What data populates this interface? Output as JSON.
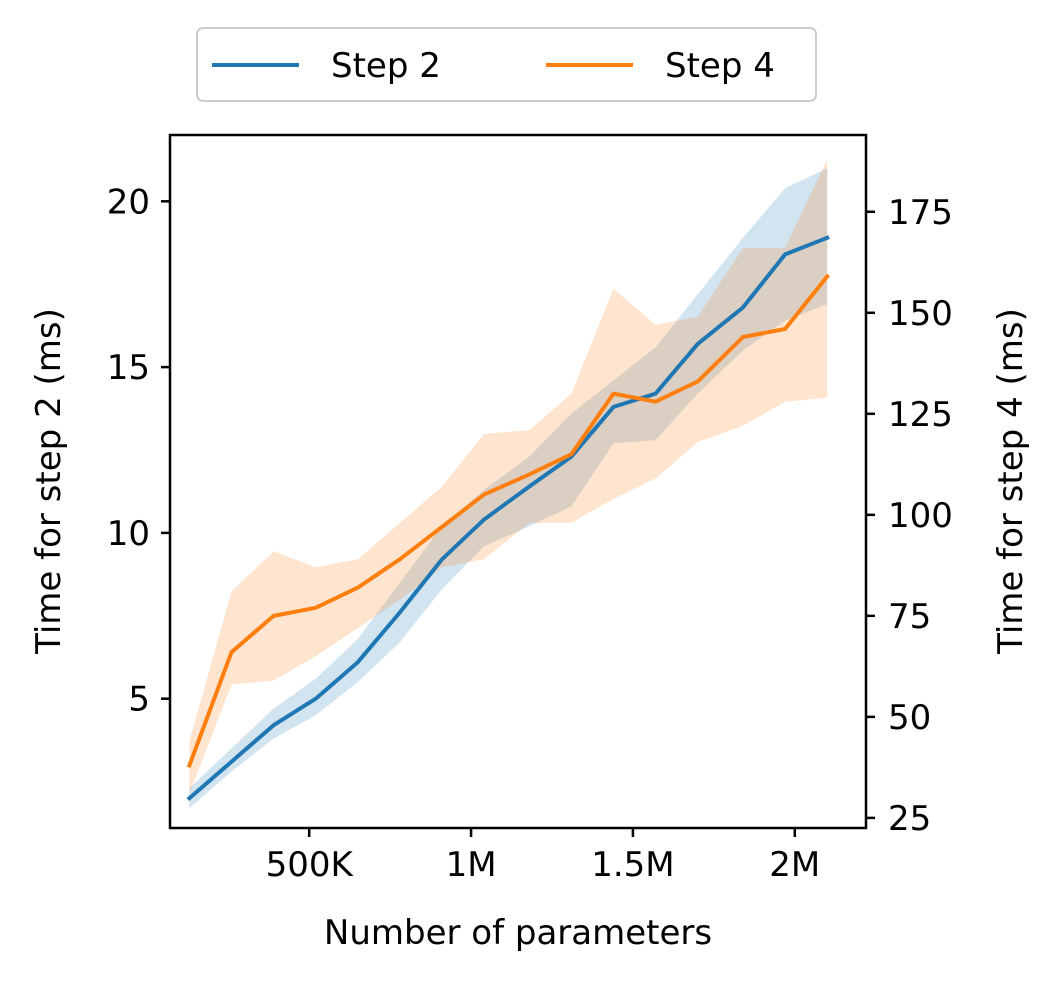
{
  "chart_data": {
    "type": "line",
    "xlabel": "Number of parameters",
    "ylabel_left": "Time for step 2 (ms)",
    "ylabel_right": "Time for step 4 (ms)",
    "xlim": [
      70000,
      2220000
    ],
    "ylim_left": [
      1.1,
      22
    ],
    "ylim_right": [
      22.5,
      194
    ],
    "x_ticks": [
      {
        "value": 500000,
        "label": "500K"
      },
      {
        "value": 1000000,
        "label": "1M"
      },
      {
        "value": 1500000,
        "label": "1.5M"
      },
      {
        "value": 2000000,
        "label": "2M"
      }
    ],
    "y_ticks_left": [
      {
        "value": 5,
        "label": "5"
      },
      {
        "value": 10,
        "label": "10"
      },
      {
        "value": 15,
        "label": "15"
      },
      {
        "value": 20,
        "label": "20"
      }
    ],
    "y_ticks_right": [
      {
        "value": 25,
        "label": "25"
      },
      {
        "value": 50,
        "label": "50"
      },
      {
        "value": 75,
        "label": "75"
      },
      {
        "value": 100,
        "label": "100"
      },
      {
        "value": 125,
        "label": "125"
      },
      {
        "value": 150,
        "label": "150"
      },
      {
        "value": 175,
        "label": "175"
      }
    ],
    "x": [
      130000,
      260000,
      390000,
      520000,
      650000,
      780000,
      910000,
      1040000,
      1180000,
      1310000,
      1440000,
      1570000,
      1700000,
      1840000,
      1970000,
      2100000
    ],
    "series": [
      {
        "name": "Step 2",
        "axis": "left",
        "color": "#1f77b4",
        "band_color": "#1f77b4",
        "values": [
          2.0,
          3.1,
          4.2,
          5.0,
          6.1,
          7.6,
          9.2,
          10.4,
          11.4,
          12.3,
          13.8,
          14.2,
          15.7,
          16.8,
          18.4,
          18.9
        ],
        "lower": [
          1.7,
          2.8,
          3.8,
          4.5,
          5.5,
          6.7,
          8.3,
          9.6,
          10.2,
          10.8,
          12.7,
          12.8,
          14.2,
          15.5,
          16.4,
          16.9
        ],
        "upper": [
          2.3,
          3.5,
          4.7,
          5.6,
          6.8,
          8.5,
          10.2,
          11.3,
          12.3,
          13.6,
          14.6,
          15.6,
          17.2,
          18.9,
          20.4,
          21.0
        ]
      },
      {
        "name": "Step 4",
        "axis": "right",
        "color": "#ff7f0e",
        "band_color": "#ff7f0e",
        "values": [
          38,
          66,
          75,
          77,
          82,
          89,
          97,
          105,
          110,
          115,
          130,
          128,
          133,
          144,
          146,
          159
        ],
        "lower": [
          31,
          58,
          59,
          65,
          72,
          79,
          87,
          89,
          98,
          98,
          104,
          109,
          118,
          122,
          128,
          129
        ],
        "upper": [
          44,
          81,
          91,
          87,
          89,
          98,
          107,
          120,
          121,
          130,
          156,
          147,
          149,
          166,
          166,
          188
        ]
      }
    ],
    "legend": {
      "position": "top-center",
      "entries": [
        "Step 2",
        "Step 4"
      ]
    }
  }
}
